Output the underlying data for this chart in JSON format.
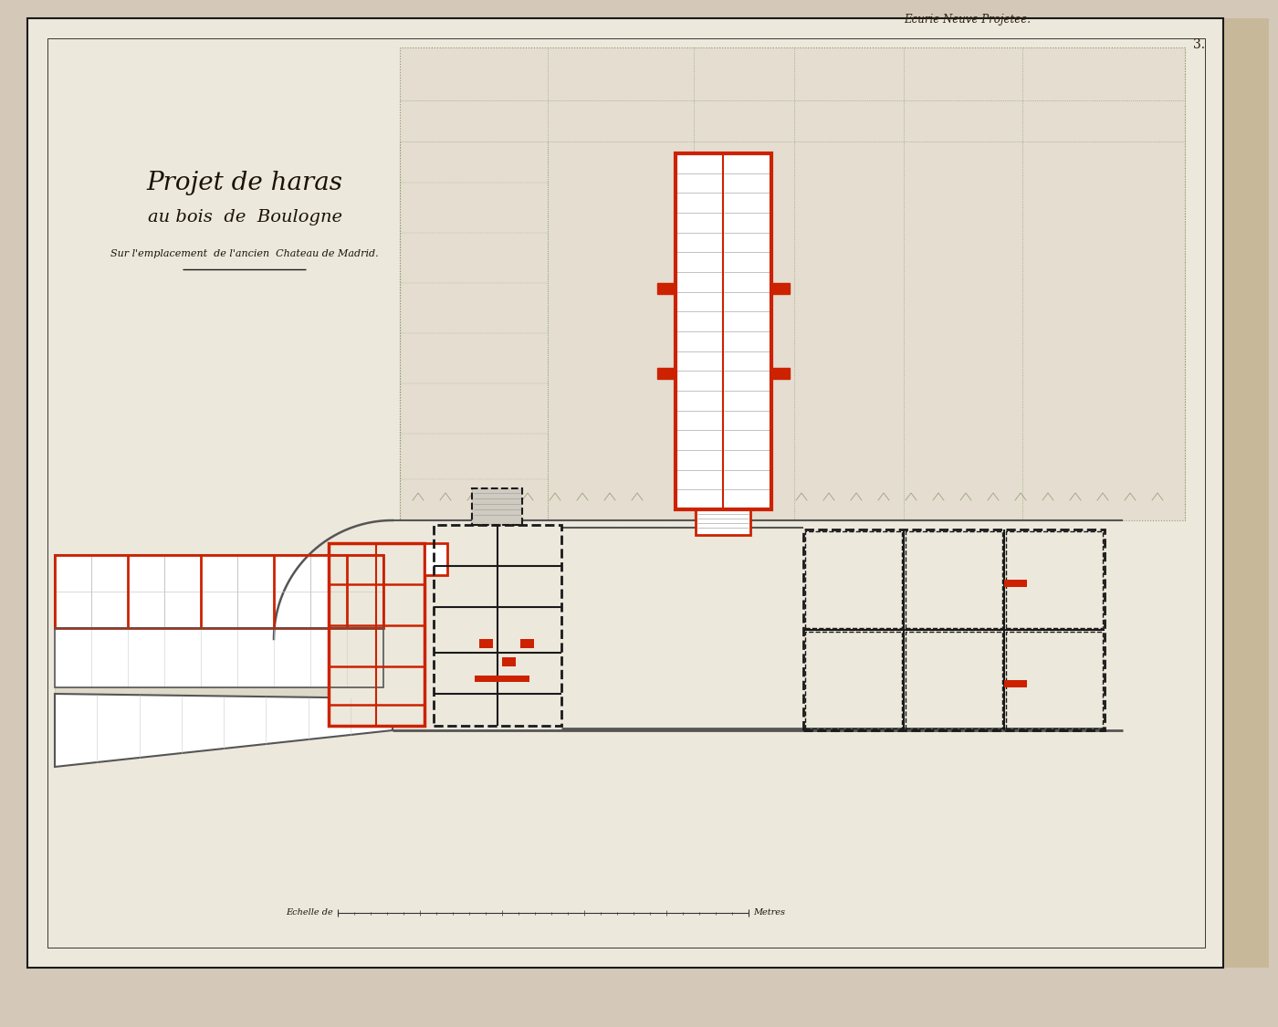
{
  "bg_color": "#d4c9b8",
  "paper_color": "#ede8dc",
  "paper_inner": "#e8e2d4",
  "wall_color_red": "#cc2200",
  "wall_color_black": "#1a1a1a",
  "wall_color_gray": "#555555",
  "wall_color_darkgray": "#333333",
  "green_line_color": "#8a9a6a",
  "title_line1": "Projet de haras",
  "title_line2": "au bois  de  Boulogne",
  "title_line3": "Sur l'emplacement  de l'ancien  Chateau de Madrid.",
  "scale_label": "Echelle de",
  "scale_label2": "Metres",
  "header_text": "Ecurie Neuve Projetee.",
  "page_num": "3."
}
